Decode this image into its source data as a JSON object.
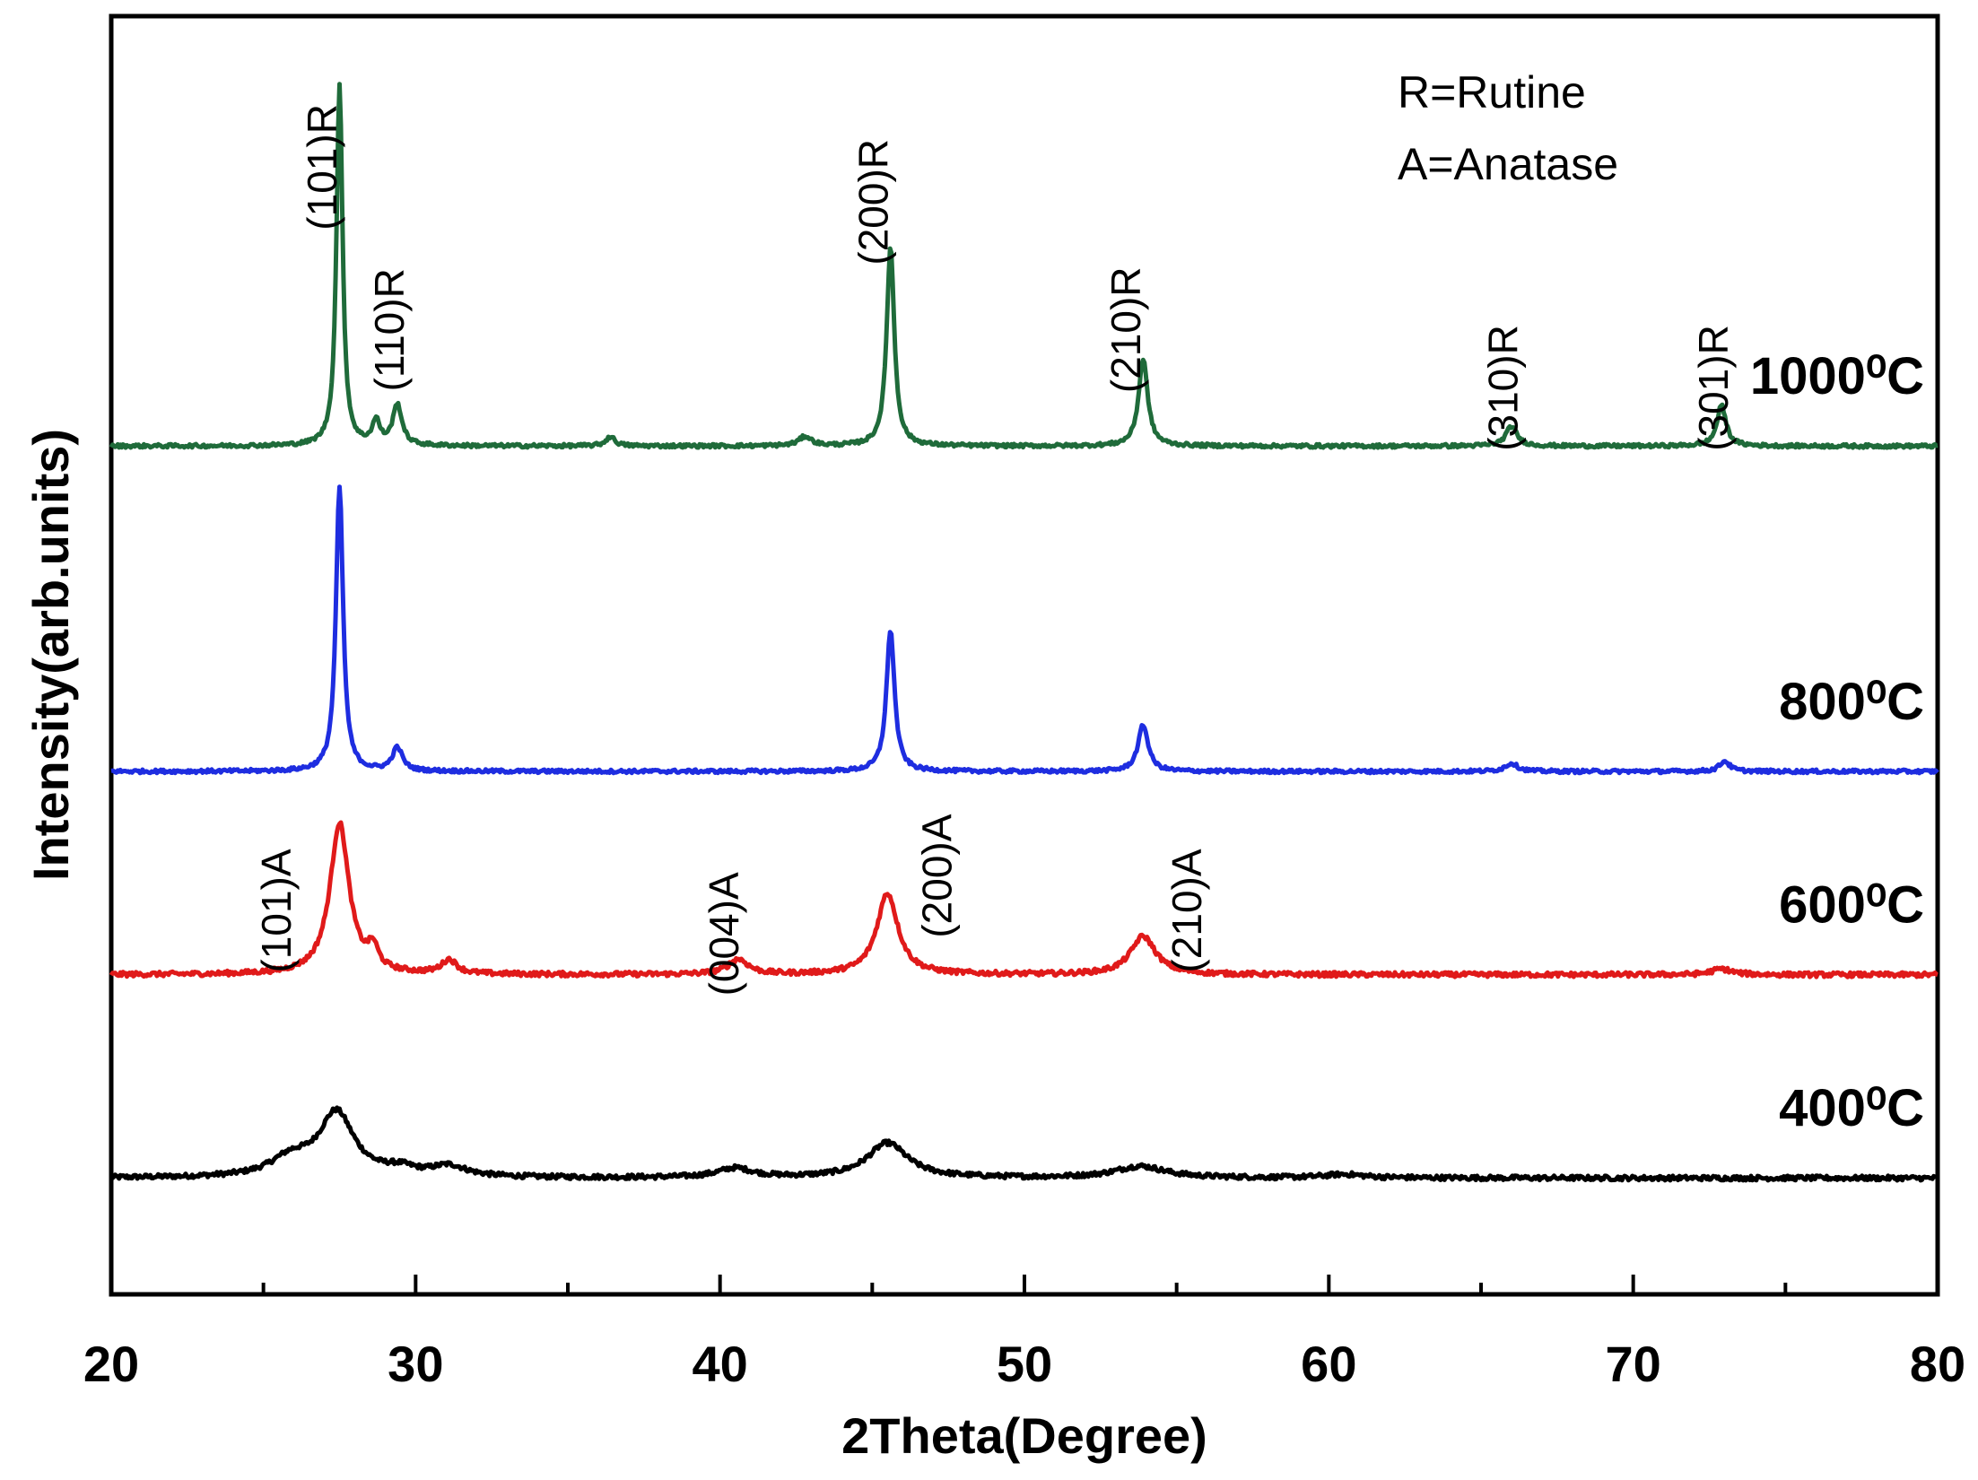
{
  "chart_data": {
    "type": "line",
    "xlabel": "2Theta(Degree)",
    "ylabel": "Intensity(arb.units)",
    "xlim": [
      20,
      80
    ],
    "x_ticks": [
      "20",
      "30",
      "40",
      "50",
      "60",
      "70",
      "80"
    ],
    "y_ticks": false,
    "grid": false,
    "legend": {
      "position": "top-right",
      "entries": [
        "R=Rutine",
        "A=Anatase"
      ]
    },
    "series": [
      {
        "name": "400⁰C",
        "color": "#000000",
        "baseline": 1.0,
        "noise": 0.02,
        "peaks": [
          {
            "x": 27.4,
            "h": 0.55,
            "w": 0.7
          },
          {
            "x": 25.9,
            "h": 0.15,
            "w": 0.8
          },
          {
            "x": 29.5,
            "h": 0.06,
            "w": 0.6
          },
          {
            "x": 31.1,
            "h": 0.09,
            "w": 0.7
          },
          {
            "x": 40.5,
            "h": 0.08,
            "w": 0.7
          },
          {
            "x": 45.5,
            "h": 0.3,
            "w": 0.8
          },
          {
            "x": 53.8,
            "h": 0.1,
            "w": 1.0
          },
          {
            "x": 60.5,
            "h": 0.03,
            "w": 0.8
          }
        ]
      },
      {
        "name": "600⁰C",
        "color": "#e01a1a",
        "baseline": 2.75,
        "noise": 0.02,
        "peaks": [
          {
            "x": 27.5,
            "h": 1.3,
            "w": 0.38
          },
          {
            "x": 28.6,
            "h": 0.18,
            "w": 0.2
          },
          {
            "x": 31.1,
            "h": 0.12,
            "w": 0.3
          },
          {
            "x": 40.6,
            "h": 0.13,
            "w": 0.4
          },
          {
            "x": 45.5,
            "h": 0.7,
            "w": 0.42
          },
          {
            "x": 53.9,
            "h": 0.33,
            "w": 0.5
          },
          {
            "x": 72.9,
            "h": 0.05,
            "w": 0.4
          }
        ]
      },
      {
        "name": "800⁰C",
        "color": "#1e2de0",
        "baseline": 4.5,
        "noise": 0.015,
        "peaks": [
          {
            "x": 27.5,
            "h": 2.45,
            "w": 0.14
          },
          {
            "x": 29.4,
            "h": 0.2,
            "w": 0.2
          },
          {
            "x": 45.6,
            "h": 1.22,
            "w": 0.16
          },
          {
            "x": 53.9,
            "h": 0.4,
            "w": 0.2
          },
          {
            "x": 66.0,
            "h": 0.07,
            "w": 0.25
          },
          {
            "x": 73.0,
            "h": 0.09,
            "w": 0.2
          }
        ]
      },
      {
        "name": "1000⁰C",
        "color": "#1f6b3a",
        "baseline": 7.3,
        "noise": 0.015,
        "peaks": [
          {
            "x": 27.5,
            "h": 3.1,
            "w": 0.12
          },
          {
            "x": 28.7,
            "h": 0.2,
            "w": 0.15
          },
          {
            "x": 29.4,
            "h": 0.35,
            "w": 0.18
          },
          {
            "x": 36.4,
            "h": 0.08,
            "w": 0.18
          },
          {
            "x": 42.8,
            "h": 0.08,
            "w": 0.25
          },
          {
            "x": 45.6,
            "h": 1.72,
            "w": 0.15
          },
          {
            "x": 53.9,
            "h": 0.75,
            "w": 0.18
          },
          {
            "x": 66.0,
            "h": 0.17,
            "w": 0.22
          },
          {
            "x": 72.9,
            "h": 0.35,
            "w": 0.18
          }
        ]
      }
    ],
    "annotations": [
      {
        "text": "(101)R",
        "x": 27.4,
        "y": 9.7
      },
      {
        "text": "(110)R",
        "x": 29.6,
        "y": 8.3
      },
      {
        "text": "(200)R",
        "x": 45.5,
        "y": 9.4
      },
      {
        "text": "(210)R",
        "x": 53.8,
        "y": 8.3
      },
      {
        "text": "(310)R",
        "x": 66.2,
        "y": 7.8
      },
      {
        "text": "(301)R",
        "x": 73.1,
        "y": 7.8
      },
      {
        "text": "(101)A",
        "x": 25.9,
        "y": 3.3
      },
      {
        "text": "(004)A",
        "x": 40.6,
        "y": 3.1
      },
      {
        "text": "(200)A",
        "x": 47.6,
        "y": 3.6
      },
      {
        "text": "(210)A",
        "x": 55.8,
        "y": 3.3
      }
    ]
  }
}
